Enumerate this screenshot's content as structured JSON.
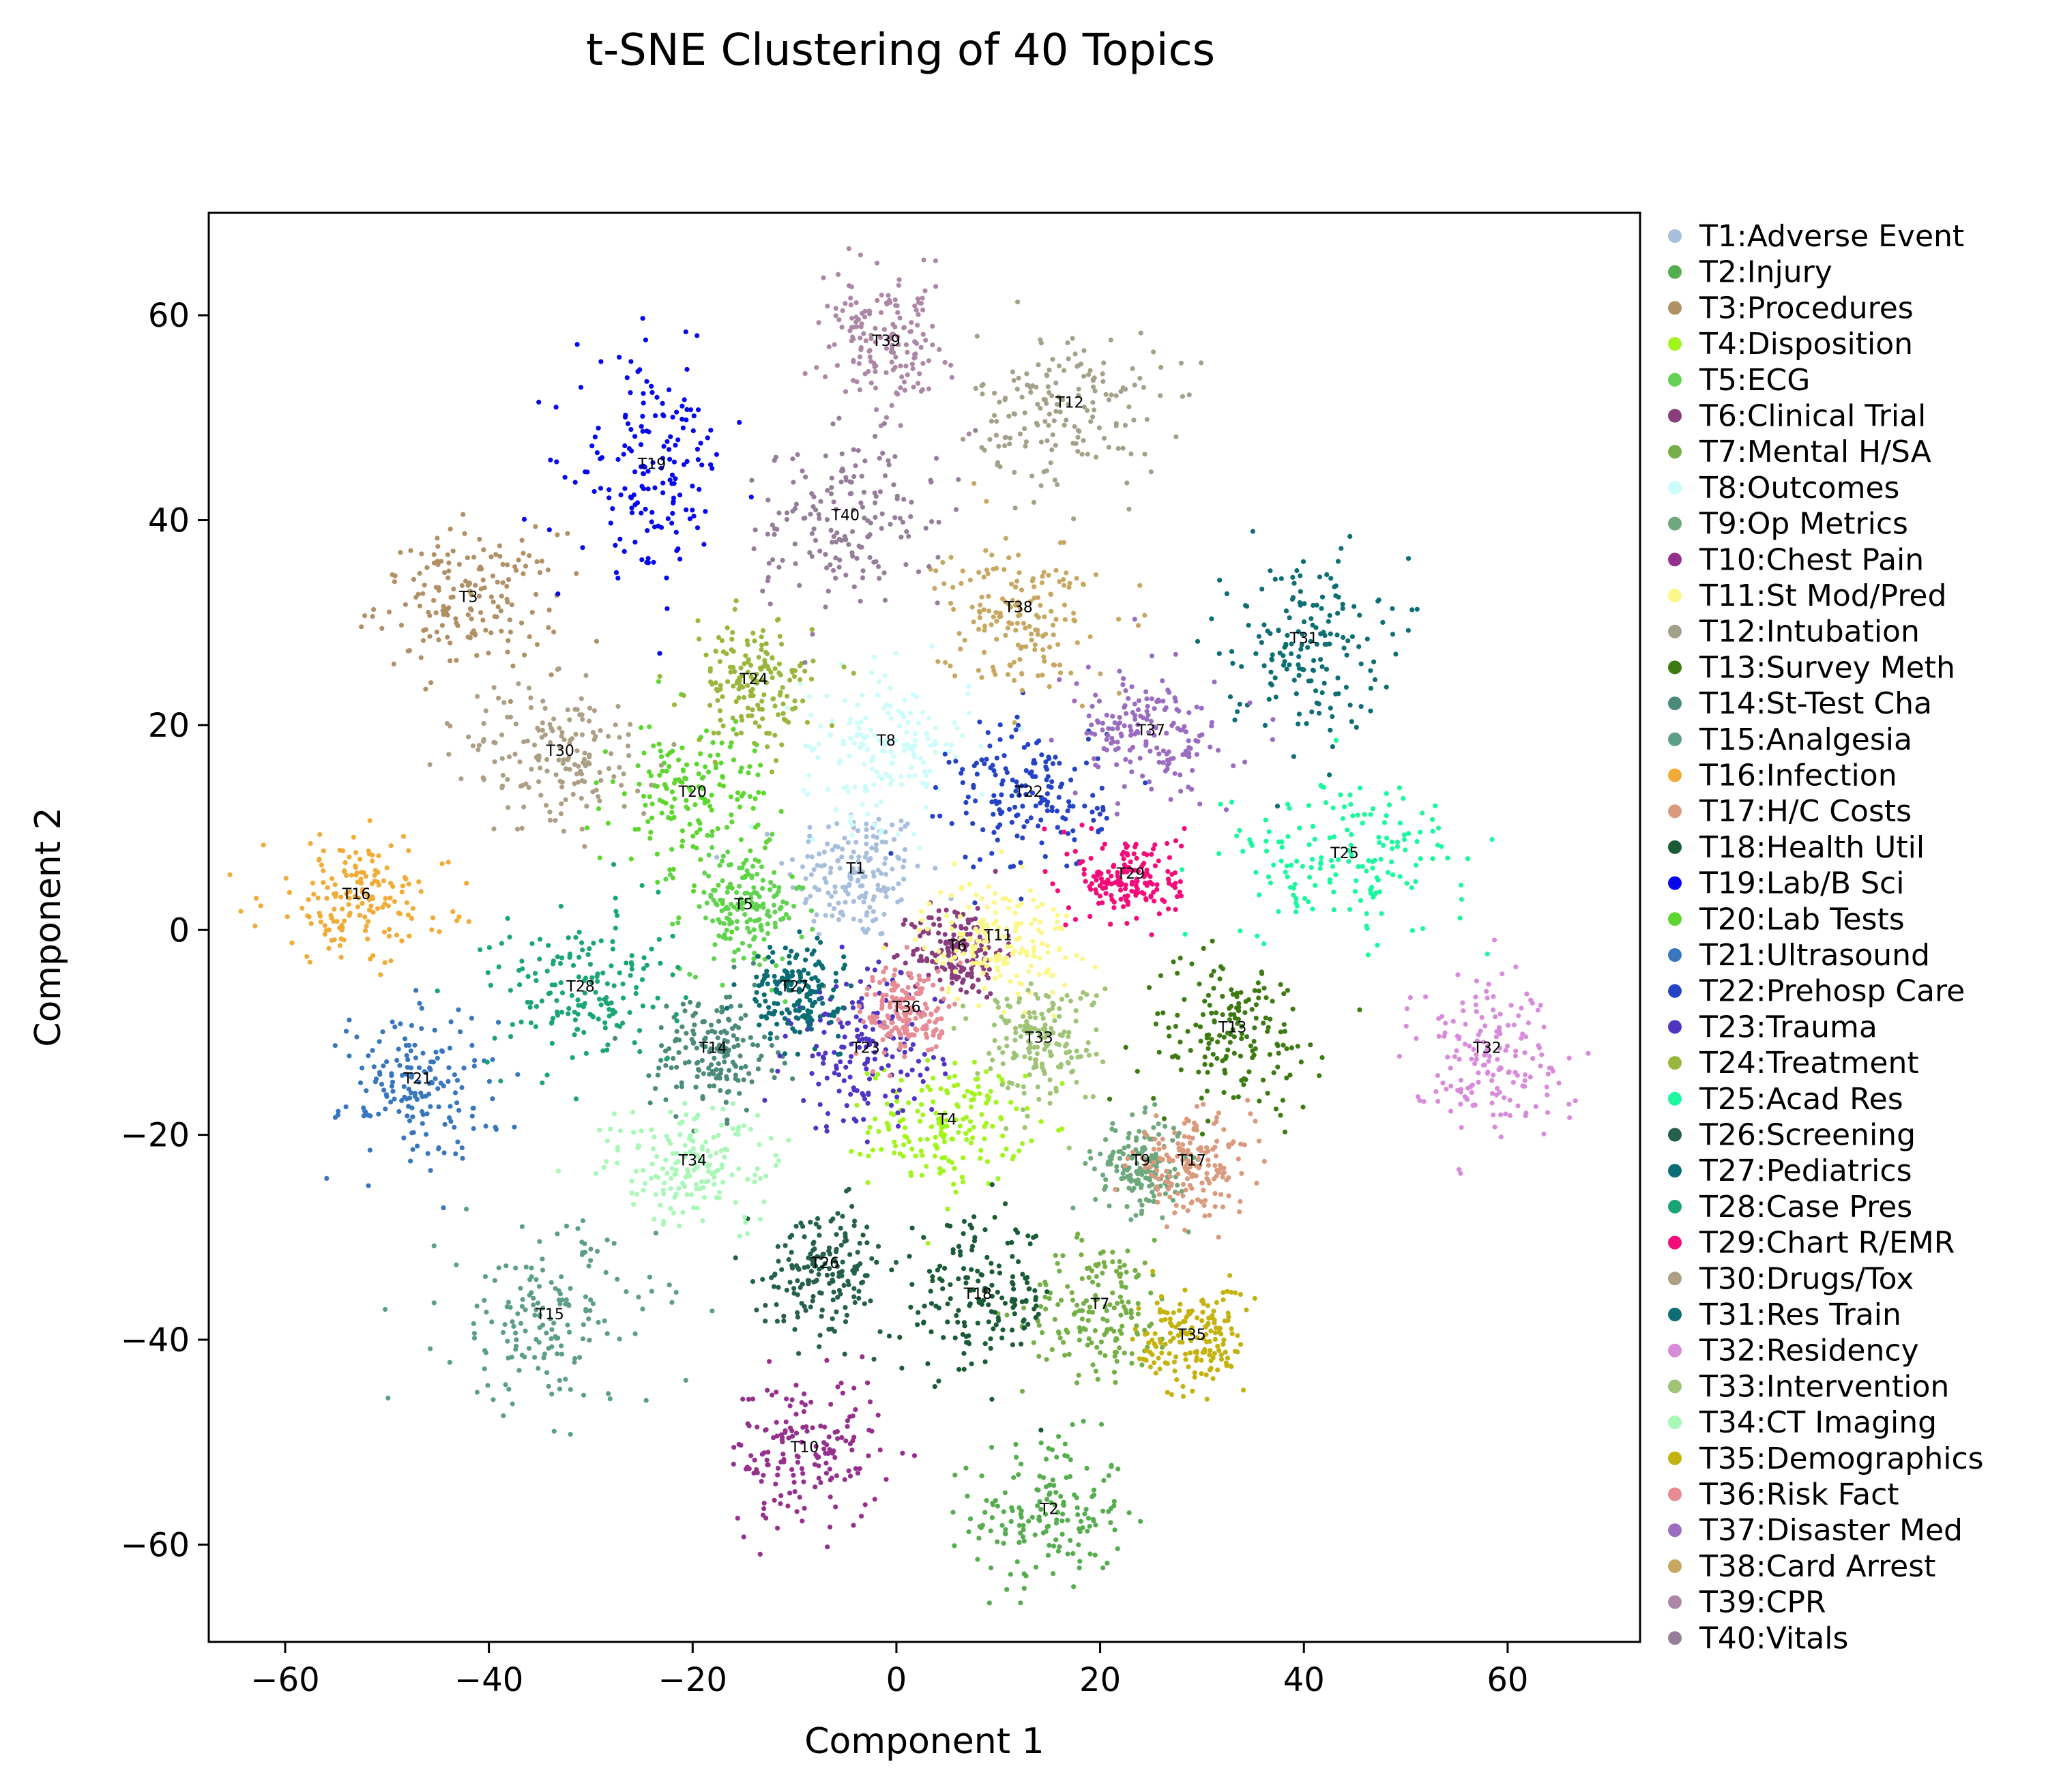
{
  "chart_data": {
    "type": "scatter",
    "title": "t-SNE Clustering of 40 Topics",
    "xlabel": "Component 1",
    "ylabel": "Component 2",
    "xlim": [
      -67.5,
      73
    ],
    "ylim": [
      -69.5,
      70
    ],
    "xticks": [
      -60,
      -40,
      -20,
      0,
      20,
      40,
      60
    ],
    "yticks": [
      -60,
      -40,
      -20,
      0,
      20,
      40,
      60
    ],
    "grid": false,
    "legend_position": "outside-right",
    "series": [
      {
        "name": "T1:Adverse Event",
        "label": "T1",
        "color": "#a8bfdc",
        "center": [
          -4,
          5.5
        ],
        "spread": [
          4.5,
          4.5
        ]
      },
      {
        "name": "T2:Injury",
        "label": "T2",
        "color": "#55ad4e",
        "center": [
          15,
          -57
        ],
        "spread": [
          5,
          5
        ]
      },
      {
        "name": "T3:Procedures",
        "label": "T3",
        "color": "#b09065",
        "center": [
          -42,
          32
        ],
        "spread": [
          6,
          4.5
        ]
      },
      {
        "name": "T4:Disposition",
        "label": "T4",
        "color": "#a2f51c",
        "center": [
          5,
          -19
        ],
        "spread": [
          5,
          4
        ]
      },
      {
        "name": "T5:ECG",
        "label": "T5",
        "color": "#62d350",
        "center": [
          -15,
          2
        ],
        "spread": [
          4,
          4
        ]
      },
      {
        "name": "T6:Clinical Trial",
        "label": "T6",
        "color": "#8a3d7d",
        "center": [
          6,
          -2
        ],
        "spread": [
          3,
          3
        ]
      },
      {
        "name": "T7:Mental H/SA",
        "label": "T7",
        "color": "#75af47",
        "center": [
          20,
          -37
        ],
        "spread": [
          5,
          4.5
        ]
      },
      {
        "name": "T8:Outcomes",
        "label": "T8",
        "color": "#ccfcfb",
        "center": [
          -1,
          18
        ],
        "spread": [
          5.5,
          5
        ]
      },
      {
        "name": "T9:Op Metrics",
        "label": "T9",
        "color": "#6ea87d",
        "center": [
          24,
          -23
        ],
        "spread": [
          3,
          3
        ]
      },
      {
        "name": "T10:Chest Pain",
        "label": "T10",
        "color": "#95308d",
        "center": [
          -9,
          -51
        ],
        "spread": [
          5,
          5
        ]
      },
      {
        "name": "T11:St Mod/Pred",
        "label": "T11",
        "color": "#fbf788",
        "center": [
          10,
          -1
        ],
        "spread": [
          5,
          4
        ]
      },
      {
        "name": "T12:Intubation",
        "label": "T12",
        "color": "#a4a18b",
        "center": [
          17,
          51
        ],
        "spread": [
          6,
          5
        ]
      },
      {
        "name": "T13:Survey Meth",
        "label": "T13",
        "color": "#3d7a11",
        "center": [
          33,
          -10
        ],
        "spread": [
          6,
          5
        ]
      },
      {
        "name": "T14:St-Test Cha",
        "label": "T14",
        "color": "#4c8a7a",
        "center": [
          -18,
          -12
        ],
        "spread": [
          4,
          4
        ]
      },
      {
        "name": "T15:Analgesia",
        "label": "T15",
        "color": "#5d9e89",
        "center": [
          -34,
          -38
        ],
        "spread": [
          7,
          6
        ]
      },
      {
        "name": "T16:Infection",
        "label": "T16",
        "color": "#f0ac36",
        "center": [
          -53,
          3
        ],
        "spread": [
          6,
          4
        ]
      },
      {
        "name": "T17:H/C Costs",
        "label": "T17",
        "color": "#d99a7d",
        "center": [
          29,
          -23
        ],
        "spread": [
          4,
          3
        ]
      },
      {
        "name": "T18:Health Util",
        "label": "T18",
        "color": "#1a5b37",
        "center": [
          8,
          -36
        ],
        "spread": [
          5,
          5
        ]
      },
      {
        "name": "T19:Lab/B Sci",
        "label": "T19",
        "color": "#0707ee",
        "center": [
          -24,
          45
        ],
        "spread": [
          5,
          7
        ]
      },
      {
        "name": "T20:Lab Tests",
        "label": "T20",
        "color": "#5ed630",
        "center": [
          -20,
          13
        ],
        "spread": [
          5,
          5
        ]
      },
      {
        "name": "T21:Ultrasound",
        "label": "T21",
        "color": "#3877bd",
        "center": [
          -47,
          -15
        ],
        "spread": [
          5,
          5
        ]
      },
      {
        "name": "T22:Prehosp Care",
        "label": "T22",
        "color": "#2443c5",
        "center": [
          13,
          13
        ],
        "spread": [
          5,
          5
        ]
      },
      {
        "name": "T23:Trauma",
        "label": "T23",
        "color": "#5035c5",
        "center": [
          -3,
          -12
        ],
        "spread": [
          5,
          5
        ]
      },
      {
        "name": "T24:Treatment",
        "label": "T24",
        "color": "#9ab63d",
        "center": [
          -14,
          24
        ],
        "spread": [
          4,
          4
        ]
      },
      {
        "name": "T25:Acad Res",
        "label": "T25",
        "color": "#1bf8a0",
        "center": [
          44,
          7
        ],
        "spread": [
          8,
          5
        ]
      },
      {
        "name": "T26:Screening",
        "label": "T26",
        "color": "#25604a",
        "center": [
          -7,
          -33
        ],
        "spread": [
          4,
          4
        ]
      },
      {
        "name": "T27:Pediatrics",
        "label": "T27",
        "color": "#0a6d73",
        "center": [
          -10,
          -6
        ],
        "spread": [
          3,
          3
        ]
      },
      {
        "name": "T28:Case Pres",
        "label": "T28",
        "color": "#1aa674",
        "center": [
          -31,
          -6
        ],
        "spread": [
          6,
          5
        ]
      },
      {
        "name": "T29:Chart R/EMR",
        "label": "T29",
        "color": "#f40c7a",
        "center": [
          23,
          5
        ],
        "spread": [
          3.5,
          3
        ]
      },
      {
        "name": "T30:Drugs/Tox",
        "label": "T30",
        "color": "#ac9f86",
        "center": [
          -33,
          17
        ],
        "spread": [
          6,
          5
        ]
      },
      {
        "name": "T31:Res Train",
        "label": "T31",
        "color": "#0d6e73",
        "center": [
          40,
          28
        ],
        "spread": [
          5,
          6
        ]
      },
      {
        "name": "T32:Residency",
        "label": "T32",
        "color": "#d98bdb",
        "center": [
          58,
          -12
        ],
        "spread": [
          5,
          5
        ]
      },
      {
        "name": "T33:Intervention",
        "label": "T33",
        "color": "#9fc476",
        "center": [
          14,
          -11
        ],
        "spread": [
          4,
          4
        ]
      },
      {
        "name": "T34:CT Imaging",
        "label": "T34",
        "color": "#a9f8b7",
        "center": [
          -20,
          -23
        ],
        "spread": [
          6,
          4
        ]
      },
      {
        "name": "T35:Demographics",
        "label": "T35",
        "color": "#c4b30f",
        "center": [
          29,
          -40
        ],
        "spread": [
          3.5,
          3.5
        ]
      },
      {
        "name": "T36:Risk Fact",
        "label": "T36",
        "color": "#e78b94",
        "center": [
          1,
          -8
        ],
        "spread": [
          3,
          3
        ]
      },
      {
        "name": "T37:Disaster Med",
        "label": "T37",
        "color": "#9b6dc1",
        "center": [
          25,
          19
        ],
        "spread": [
          5,
          4
        ]
      },
      {
        "name": "T38:Card Arrest",
        "label": "T38",
        "color": "#c7a863",
        "center": [
          12,
          31
        ],
        "spread": [
          5,
          5
        ]
      },
      {
        "name": "T39:CPR",
        "label": "T39",
        "color": "#ad88a6",
        "center": [
          -1,
          57
        ],
        "spread": [
          4,
          4
        ]
      },
      {
        "name": "T40:Vitals",
        "label": "T40",
        "color": "#957e99",
        "center": [
          -5,
          40
        ],
        "spread": [
          6,
          6
        ]
      }
    ]
  }
}
